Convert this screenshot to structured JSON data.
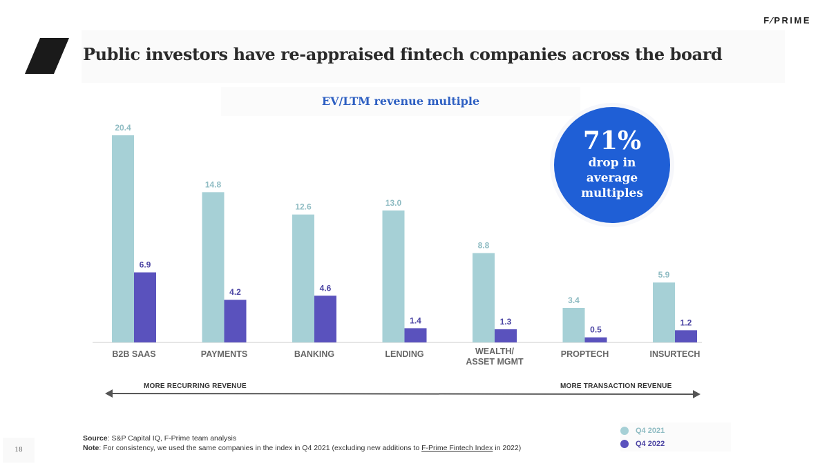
{
  "brand": "F⁄PRIME",
  "title": "Public investors have re-appraised fintech companies across the board",
  "callout": {
    "percent": "71%",
    "text": "drop in\naverage\nmultiples"
  },
  "arrow": {
    "left_label": "MORE RECURRING REVENUE",
    "right_label": "MORE TRANSACTION REVENUE"
  },
  "footnote": {
    "source_label": "Source",
    "source_text": ": S&P Capital IQ, F-Prime team analysis",
    "note_label": "Note",
    "note_text": ": For consistency, we used the same companies in the index in Q4 2021 (excluding new additions to ",
    "note_link": "F-Prime Fintech Index",
    "note_end": " in 2022)"
  },
  "page_number": "18",
  "colors": {
    "q4_2021": "#a6d0d6",
    "q4_2022": "#5a52bd",
    "label_2021": "#8fbcc3",
    "label_2022": "#4b44a3",
    "axis_label": "#666666"
  },
  "chart_data": {
    "type": "bar",
    "title": "EV/LTM revenue multiple",
    "categories": [
      "B2B SAAS",
      "PAYMENTS",
      "BANKING",
      "LENDING",
      "WEALTH/\nASSET MGMT",
      "PROPTECH",
      "INSURTECH"
    ],
    "series": [
      {
        "name": "Q4 2021",
        "values": [
          20.4,
          14.8,
          12.6,
          13.0,
          8.8,
          3.4,
          5.9
        ]
      },
      {
        "name": "Q4 2022",
        "values": [
          6.9,
          4.2,
          4.6,
          1.4,
          1.3,
          0.5,
          1.2
        ]
      }
    ],
    "ylim": [
      0,
      20.4
    ],
    "grid": false,
    "legend": "bottom-right"
  }
}
